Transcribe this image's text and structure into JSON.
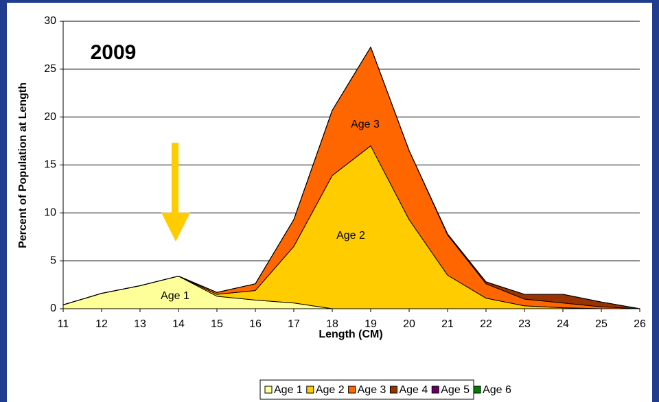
{
  "chart_data": {
    "type": "stacked_area",
    "annotations": [
      "2009",
      "Age 1",
      "Age 2",
      "Age 3"
    ],
    "x_label": "Length (CM)",
    "y_label": "Percent of Population at Length",
    "x": [
      11,
      12,
      13,
      14,
      15,
      16,
      17,
      18,
      19,
      20,
      21,
      22,
      23,
      24,
      25,
      26
    ],
    "xlim": [
      11,
      26
    ],
    "xticks": [
      11,
      12,
      13,
      14,
      15,
      16,
      17,
      18,
      19,
      20,
      21,
      22,
      23,
      24,
      25,
      26
    ],
    "ylim": [
      0,
      30
    ],
    "yticks": [
      0,
      5,
      10,
      15,
      20,
      25,
      30
    ],
    "grid": true,
    "legend": "bottom",
    "series": [
      {
        "name": "Age 1",
        "color": "#ffff99",
        "values": [
          0.4,
          1.6,
          2.4,
          3.4,
          1.3,
          0.9,
          0.6,
          0,
          0,
          0,
          0,
          0,
          0,
          0,
          0,
          0
        ]
      },
      {
        "name": "Age 2",
        "color": "#ffcc00",
        "values": [
          0,
          0,
          0,
          0,
          0.2,
          1.0,
          5.9,
          13.9,
          17.0,
          9.3,
          3.5,
          1.1,
          0.3,
          0.1,
          0,
          0
        ]
      },
      {
        "name": "Age 3",
        "color": "#ff6600",
        "values": [
          0,
          0,
          0,
          0,
          0.2,
          0.7,
          2.8,
          6.8,
          10.3,
          7.2,
          4.2,
          1.5,
          0.7,
          0.5,
          0.2,
          0
        ]
      },
      {
        "name": "Age 4",
        "color": "#993300",
        "values": [
          0,
          0,
          0,
          0,
          0,
          0,
          0,
          0,
          0,
          0,
          0.1,
          0.2,
          0.5,
          0.9,
          0.5,
          0
        ]
      },
      {
        "name": "Age 5",
        "color": "#660066",
        "values": [
          0,
          0,
          0,
          0,
          0,
          0,
          0,
          0,
          0,
          0,
          0,
          0,
          0,
          0,
          0,
          0
        ]
      },
      {
        "name": "Age 6",
        "color": "#008000",
        "values": [
          0,
          0,
          0,
          0,
          0,
          0,
          0,
          0,
          0,
          0,
          0,
          0,
          0,
          0,
          0,
          0
        ]
      }
    ]
  }
}
